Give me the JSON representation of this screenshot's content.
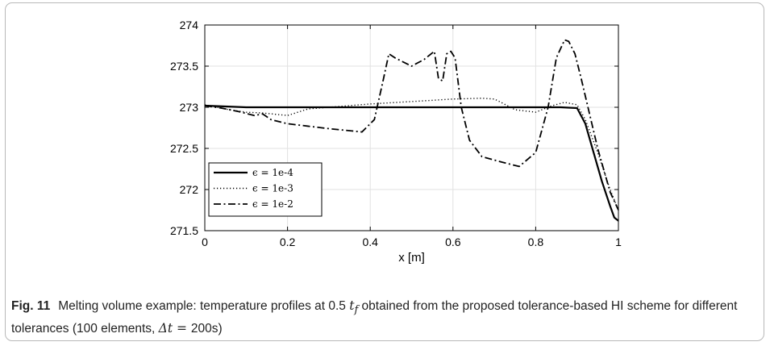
{
  "caption": {
    "label": "Fig. 11",
    "text_before_tf": "Melting volume example: temperature profiles at 0.5 ",
    "tf_symbol": "t",
    "tf_sub": "f",
    "text_after_tf": " obtained from the proposed tolerance-based HI scheme for different tolerances (100 elements, ",
    "dt_expr": "Δt = ",
    "dt_value": "200s)"
  },
  "chart_data": {
    "type": "line",
    "xlabel": "x [m]",
    "ylabel": "",
    "xlim": [
      0,
      1
    ],
    "ylim": [
      271.5,
      274
    ],
    "xticks": [
      0,
      0.2,
      0.4,
      0.6,
      0.8,
      1
    ],
    "xtick_labels": [
      "0",
      "0.2",
      "0.4",
      "0.6",
      "0.8",
      "1"
    ],
    "yticks": [
      271.5,
      272,
      272.5,
      273,
      273.5,
      274
    ],
    "ytick_labels": [
      "271.5",
      "272",
      "272.5",
      "273",
      "273.5",
      "274"
    ],
    "grid": true,
    "legend_position": "bottom-left",
    "series": [
      {
        "name": "ϵ = 1e-4",
        "style": "solid",
        "x": [
          0,
          0.05,
          0.1,
          0.2,
          0.3,
          0.4,
          0.5,
          0.6,
          0.7,
          0.8,
          0.86,
          0.9,
          0.92,
          0.94,
          0.96,
          0.98,
          0.99,
          1.0
        ],
        "y": [
          273.02,
          273.01,
          273.0,
          273.0,
          273.0,
          273.0,
          273.0,
          273.0,
          273.0,
          273.0,
          273.0,
          272.99,
          272.8,
          272.45,
          272.1,
          271.8,
          271.66,
          271.62
        ]
      },
      {
        "name": "ϵ = 1e-3",
        "style": "dotted",
        "x": [
          0,
          0.03,
          0.06,
          0.1,
          0.14,
          0.2,
          0.25,
          0.3,
          0.4,
          0.5,
          0.6,
          0.67,
          0.7,
          0.72,
          0.75,
          0.8,
          0.84,
          0.87,
          0.9,
          0.92,
          0.95,
          0.98,
          1.0
        ],
        "y": [
          273.03,
          273.0,
          272.97,
          272.94,
          272.93,
          272.9,
          272.98,
          273.0,
          273.04,
          273.07,
          273.1,
          273.11,
          273.1,
          273.05,
          272.97,
          272.94,
          273.02,
          273.06,
          273.03,
          272.85,
          272.45,
          272.0,
          271.75
        ]
      },
      {
        "name": "ϵ = 1e-2",
        "style": "dashdot",
        "x": [
          0,
          0.04,
          0.08,
          0.12,
          0.14,
          0.16,
          0.2,
          0.3,
          0.38,
          0.41,
          0.43,
          0.445,
          0.46,
          0.5,
          0.53,
          0.555,
          0.565,
          0.575,
          0.585,
          0.595,
          0.605,
          0.62,
          0.64,
          0.67,
          0.72,
          0.76,
          0.8,
          0.83,
          0.85,
          0.87,
          0.88,
          0.895,
          0.91,
          0.95,
          0.98,
          1.0
        ],
        "y": [
          273.02,
          272.99,
          272.95,
          272.9,
          272.92,
          272.85,
          272.8,
          272.74,
          272.7,
          272.85,
          273.3,
          273.65,
          273.6,
          273.5,
          273.58,
          273.68,
          273.35,
          273.32,
          273.65,
          273.68,
          273.6,
          273.0,
          272.6,
          272.4,
          272.33,
          272.28,
          272.45,
          273.0,
          273.6,
          273.82,
          273.8,
          273.65,
          273.35,
          272.5,
          271.97,
          271.75
        ]
      }
    ]
  }
}
